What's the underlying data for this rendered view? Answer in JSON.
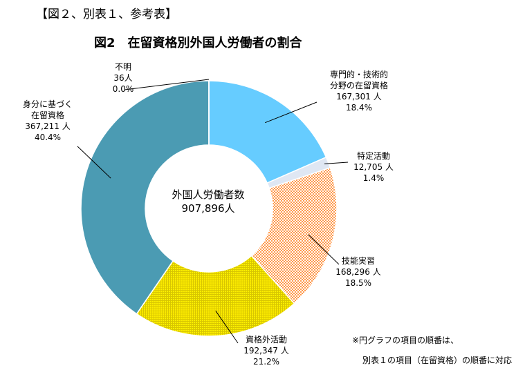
{
  "header": "【図２、別表１、参考表】",
  "chart_data": {
    "type": "donut",
    "title": "図2　在留資格別外国人労働者の割合",
    "center_label": {
      "line1": "外国人労働者数",
      "line2": "907,896人"
    },
    "slices": [
      {
        "label": "専門的・技術的分野の在留資格",
        "label_lines": [
          "専門的・技術的",
          "分野の在留資格"
        ],
        "count": "167,301 人",
        "percent": "18.4%",
        "value": 167301,
        "color": "#66ccff",
        "pattern": "none"
      },
      {
        "label": "特定活動",
        "label_lines": [
          "特定活動"
        ],
        "count": "12,705 人",
        "percent": "1.4%",
        "value": 12705,
        "color": "#dfe7f3",
        "pattern": "none"
      },
      {
        "label": "技能実習",
        "label_lines": [
          "技能実習"
        ],
        "count": "168,296 人",
        "percent": "18.5%",
        "value": 168296,
        "color": "#ff9a4d",
        "pattern": "check"
      },
      {
        "label": "資格外活動",
        "label_lines": [
          "資格外活動"
        ],
        "count": "192,347 人",
        "percent": "21.2%",
        "value": 192347,
        "color": "#ffee00",
        "pattern": "grid"
      },
      {
        "label": "身分に基づく在留資格",
        "label_lines": [
          "身分に基づく",
          "在留資格"
        ],
        "count": "367,211 人",
        "percent": "40.4%",
        "value": 367211,
        "color": "#4b9bb3",
        "pattern": "none"
      },
      {
        "label": "不明",
        "label_lines": [
          "不明"
        ],
        "count": "36人",
        "percent": "0.0%",
        "value": 36,
        "color": "#4b9bb3",
        "pattern": "none"
      }
    ]
  },
  "notes": {
    "line1": "※円グラフの項目の順番は、",
    "line2": "別表１の項目（在留資格）の順番に対応"
  }
}
